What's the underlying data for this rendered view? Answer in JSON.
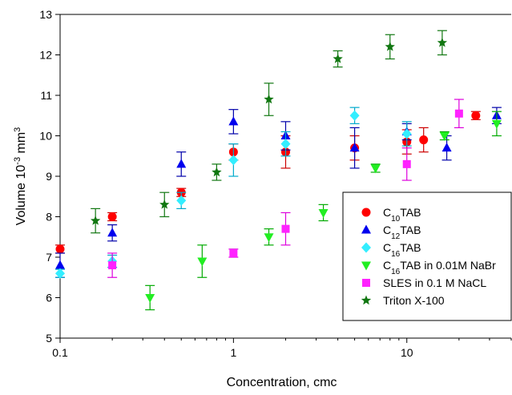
{
  "chart_data": {
    "type": "scatter",
    "xlabel": "Concentration, cmc",
    "ylabel_base": "Volume 10",
    "ylabel_exp": "-3",
    "ylabel_unit": " mm",
    "ylabel_unit_exp": "3",
    "xscale": "log",
    "xlim": [
      0.1,
      40
    ],
    "ylim": [
      5,
      13
    ],
    "x_ticks": [
      {
        "value": 0.1,
        "label": "0.1"
      },
      {
        "value": 1,
        "label": "1"
      },
      {
        "value": 10,
        "label": "10"
      }
    ],
    "y_ticks": [
      "5",
      "6",
      "7",
      "8",
      "9",
      "10",
      "11",
      "12",
      "13"
    ],
    "grid": false,
    "legend_position": "right",
    "series": [
      {
        "legend_main": "C",
        "legend_sub": "10",
        "legend_rest": "TAB",
        "marker": "circle",
        "color": "#ff0000",
        "errcolor": "#cc0000",
        "points": [
          {
            "x": 0.1,
            "y": 7.2,
            "err": 0.1
          },
          {
            "x": 0.2,
            "y": 8.0,
            "err": 0.1
          },
          {
            "x": 0.5,
            "y": 8.6,
            "err": 0.1
          },
          {
            "x": 1.0,
            "y": 9.6,
            "err": 0.2
          },
          {
            "x": 2.0,
            "y": 9.6,
            "err": 0.4
          },
          {
            "x": 5.0,
            "y": 9.7,
            "err": 0.3
          },
          {
            "x": 10.0,
            "y": 9.85,
            "err": 0.3
          },
          {
            "x": 12.5,
            "y": 9.9,
            "err": 0.3
          },
          {
            "x": 25.0,
            "y": 10.5,
            "err": 0.1
          }
        ]
      },
      {
        "legend_main": "C",
        "legend_sub": "12",
        "legend_rest": "TAB",
        "marker": "triangle-up",
        "color": "#0000ee",
        "errcolor": "#0000aa",
        "points": [
          {
            "x": 0.1,
            "y": 6.8,
            "err": 0.3
          },
          {
            "x": 0.2,
            "y": 7.6,
            "err": 0.2
          },
          {
            "x": 0.5,
            "y": 9.3,
            "err": 0.3
          },
          {
            "x": 1.0,
            "y": 10.35,
            "err": 0.3
          },
          {
            "x": 2.0,
            "y": 10.0,
            "err": 0.35
          },
          {
            "x": 5.0,
            "y": 9.7,
            "err": 0.5
          },
          {
            "x": 10.0,
            "y": 10.1,
            "err": 0.2
          },
          {
            "x": 17.0,
            "y": 9.7,
            "err": 0.3
          },
          {
            "x": 33.0,
            "y": 10.5,
            "err": 0.2
          }
        ]
      },
      {
        "legend_main": "C",
        "legend_sub": "16",
        "legend_rest": "TAB",
        "marker": "diamond",
        "color": "#33eeff",
        "errcolor": "#00aacc",
        "points": [
          {
            "x": 0.1,
            "y": 6.6,
            "err": 0.1
          },
          {
            "x": 0.2,
            "y": 6.9,
            "err": 0.15
          },
          {
            "x": 0.5,
            "y": 8.4,
            "err": 0.2
          },
          {
            "x": 1.0,
            "y": 9.4,
            "err": 0.4
          },
          {
            "x": 2.0,
            "y": 9.8,
            "err": 0.3
          },
          {
            "x": 5.0,
            "y": 10.5,
            "err": 0.2
          },
          {
            "x": 10.0,
            "y": 10.05,
            "err": 0.3
          }
        ]
      },
      {
        "legend_main": "C",
        "legend_sub": "16",
        "legend_rest": "TAB in 0.01M NaBr",
        "marker": "triangle-down",
        "color": "#22ee22",
        "errcolor": "#00aa00",
        "points": [
          {
            "x": 0.33,
            "y": 6.0,
            "err": 0.3
          },
          {
            "x": 0.66,
            "y": 6.9,
            "err": 0.4
          },
          {
            "x": 1.6,
            "y": 7.5,
            "err": 0.2
          },
          {
            "x": 3.3,
            "y": 8.1,
            "err": 0.2
          },
          {
            "x": 6.6,
            "y": 9.2,
            "err": 0.1
          },
          {
            "x": 16.5,
            "y": 10.0,
            "err": 0.1
          },
          {
            "x": 33.0,
            "y": 10.3,
            "err": 0.3
          }
        ]
      },
      {
        "legend_main": "SLES in 0.1 M NaCL",
        "legend_sub": "",
        "legend_rest": "",
        "marker": "square",
        "color": "#ff22ff",
        "errcolor": "#dd00dd",
        "points": [
          {
            "x": 0.2,
            "y": 6.8,
            "err": 0.3
          },
          {
            "x": 1.0,
            "y": 7.1,
            "err": 0.1
          },
          {
            "x": 2.0,
            "y": 7.7,
            "err": 0.4
          },
          {
            "x": 10.0,
            "y": 9.3,
            "err": 0.4
          },
          {
            "x": 20.0,
            "y": 10.55,
            "err": 0.35
          }
        ]
      },
      {
        "legend_main": "Triton X-100",
        "legend_sub": "",
        "legend_rest": "",
        "marker": "star",
        "color": "#117711",
        "errcolor": "#117711",
        "points": [
          {
            "x": 0.16,
            "y": 7.9,
            "err": 0.3
          },
          {
            "x": 0.4,
            "y": 8.3,
            "err": 0.3
          },
          {
            "x": 0.8,
            "y": 9.1,
            "err": 0.2
          },
          {
            "x": 1.6,
            "y": 10.9,
            "err": 0.4
          },
          {
            "x": 4.0,
            "y": 11.9,
            "err": 0.2
          },
          {
            "x": 8.0,
            "y": 12.2,
            "err": 0.3
          },
          {
            "x": 16.0,
            "y": 12.3,
            "err": 0.3
          }
        ]
      }
    ]
  }
}
